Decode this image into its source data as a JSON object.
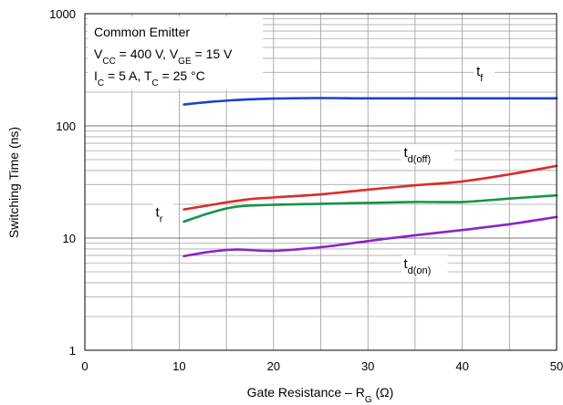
{
  "chart_data": {
    "type": "line",
    "xlabel": {
      "main": "Gate Resistance – R",
      "sub": "G",
      "unit": " (Ω)"
    },
    "ylabel": "Switching Time (ns)",
    "xlim": [
      0,
      50
    ],
    "ylim": [
      1,
      1000
    ],
    "yscale": "log",
    "grid": true,
    "x_ticks": [
      {
        "value": 0,
        "label": "0"
      },
      {
        "value": 10,
        "label": "10"
      },
      {
        "value": 20,
        "label": "20"
      },
      {
        "value": 30,
        "label": "30"
      },
      {
        "value": 40,
        "label": "40"
      },
      {
        "value": 50,
        "label": "50"
      }
    ],
    "y_ticks": [
      {
        "value": 1,
        "label": "1"
      },
      {
        "value": 10,
        "label": "10"
      },
      {
        "value": 100,
        "label": "100"
      },
      {
        "value": 1000,
        "label": "1000"
      }
    ],
    "conditions": [
      {
        "parts": [
          {
            "text": "Common Emitter"
          }
        ]
      },
      {
        "parts": [
          {
            "text": "V"
          },
          {
            "text": "CC",
            "sub": true
          },
          {
            "text": " = 400 V, V"
          },
          {
            "text": "GE",
            "sub": true
          },
          {
            "text": " = 15 V"
          }
        ]
      },
      {
        "parts": [
          {
            "text": "I"
          },
          {
            "text": "C",
            "sub": true
          },
          {
            "text": " = 5 A, T"
          },
          {
            "text": "C",
            "sub": true
          },
          {
            "text": " = 25 °C"
          }
        ]
      }
    ],
    "series": [
      {
        "label_main": "t",
        "label_sub": "f",
        "color": "#1f3fcf",
        "label_anchor_x": 41.5,
        "label_anchor_y": 280,
        "points": [
          [
            10.5,
            155
          ],
          [
            13,
            163
          ],
          [
            16,
            170
          ],
          [
            20,
            175
          ],
          [
            25,
            177
          ],
          [
            30,
            176
          ],
          [
            35,
            176
          ],
          [
            40,
            176
          ],
          [
            45,
            176
          ],
          [
            50,
            176
          ]
        ]
      },
      {
        "label_main": "t",
        "label_sub": "d(off)",
        "color": "#e02a2a",
        "label_anchor_x": 33.8,
        "label_anchor_y": 53,
        "points": [
          [
            10.5,
            18
          ],
          [
            13,
            19.5
          ],
          [
            17,
            22
          ],
          [
            20,
            23
          ],
          [
            25,
            24.5
          ],
          [
            30,
            27
          ],
          [
            35,
            29.5
          ],
          [
            40,
            32
          ],
          [
            45,
            37
          ],
          [
            50,
            44
          ]
        ]
      },
      {
        "label_main": "t",
        "label_sub": "r",
        "color": "#14944a",
        "label_anchor_x": 7.5,
        "label_anchor_y": 15.5,
        "points": [
          [
            10.5,
            14
          ],
          [
            13,
            16.5
          ],
          [
            16,
            19
          ],
          [
            20,
            19.8
          ],
          [
            25,
            20.2
          ],
          [
            30,
            20.6
          ],
          [
            35,
            21
          ],
          [
            40,
            21
          ],
          [
            45,
            22.5
          ],
          [
            50,
            24
          ]
        ]
      },
      {
        "label_main": "t",
        "label_sub": "d(on)",
        "color": "#8a25c8",
        "label_anchor_x": 33.8,
        "label_anchor_y": 5.4,
        "points": [
          [
            10.5,
            6.9
          ],
          [
            13,
            7.5
          ],
          [
            16,
            7.9
          ],
          [
            20,
            7.7
          ],
          [
            25,
            8.3
          ],
          [
            30,
            9.4
          ],
          [
            35,
            10.6
          ],
          [
            40,
            11.8
          ],
          [
            45,
            13.3
          ],
          [
            50,
            15.4
          ]
        ]
      }
    ]
  }
}
